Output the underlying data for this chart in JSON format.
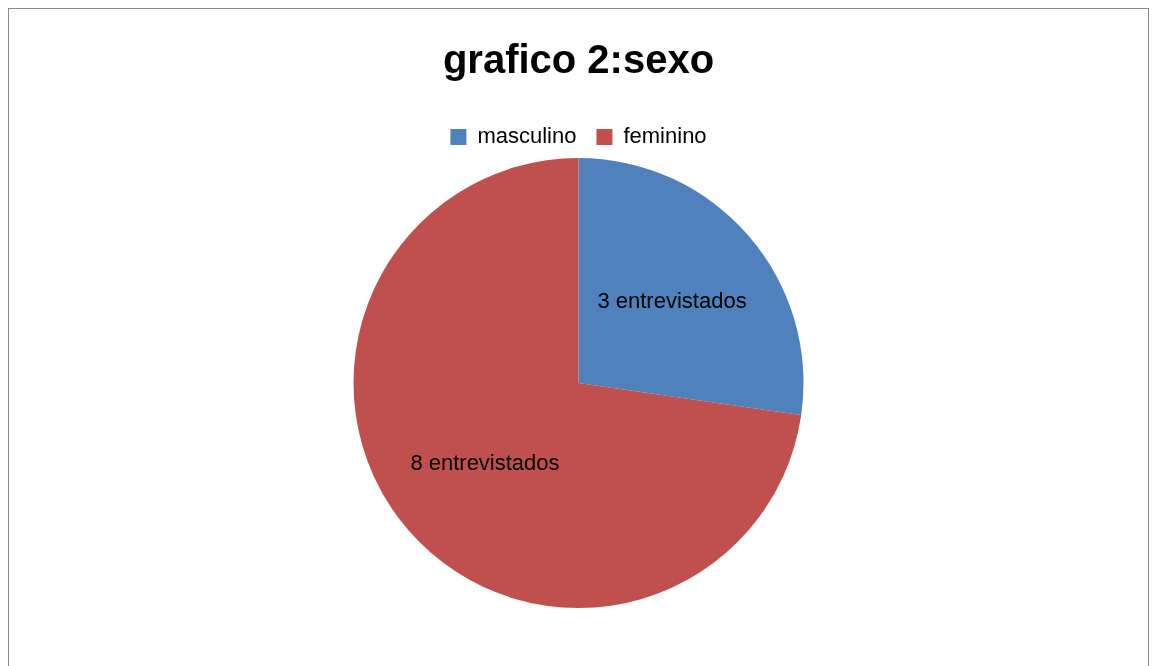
{
  "chart_data": {
    "type": "pie",
    "title": "grafico 2:sexo",
    "categories": [
      "masculino",
      "feminino"
    ],
    "values": [
      3,
      8
    ],
    "colors": [
      "#4f81bd",
      "#c0504d"
    ],
    "value_labels": [
      "3 entrevistados",
      "8 entrevistados"
    ],
    "legend": "top"
  }
}
